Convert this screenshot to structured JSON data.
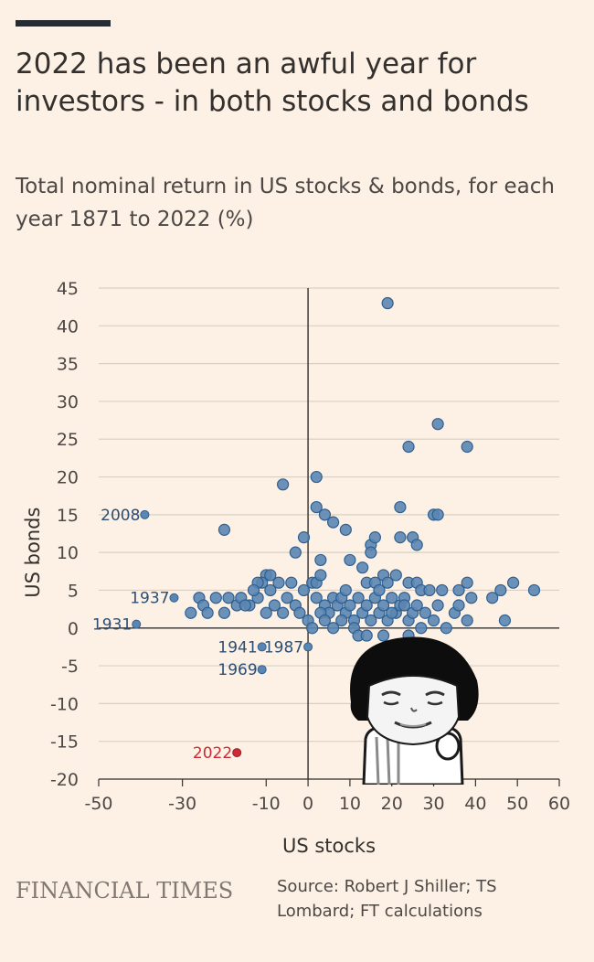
{
  "header": {
    "title": "2022 has been an awful year for investors - in both stocks and bonds",
    "subtitle": "Total nominal return in US stocks & bonds, for each year 1871 to 2022 (%)"
  },
  "footer": {
    "brand": "FINANCIAL TIMES",
    "source": "Source: Robert J Shiller; TS Lombard; FT calculations"
  },
  "colors": {
    "background": "#fdf1e5",
    "point": "#5b86b3",
    "point_stroke": "#2f5f8f",
    "highlight": "#cc2b36",
    "grid": "#d9cfc4",
    "axis": "#33302e"
  },
  "sticker": {
    "icon": "panda-meme-face-icon"
  },
  "chart_data": {
    "type": "scatter",
    "title": "",
    "xlabel": "US stocks",
    "ylabel": "US bonds",
    "xlim": [
      -50,
      60
    ],
    "ylim": [
      -20,
      45
    ],
    "xticks": [
      -50,
      -30,
      -10,
      0,
      10,
      20,
      30,
      40,
      50,
      60
    ],
    "yticks": [
      -20,
      -15,
      -10,
      -5,
      0,
      5,
      10,
      15,
      20,
      25,
      30,
      35,
      40,
      45
    ],
    "grid": "horizontal",
    "labeled_points": [
      {
        "label": "2008",
        "x": -39,
        "y": 15,
        "highlight": false
      },
      {
        "label": "1937",
        "x": -32,
        "y": 4,
        "highlight": false
      },
      {
        "label": "1931",
        "x": -41,
        "y": 0.5,
        "highlight": false
      },
      {
        "label": "1941",
        "x": -11,
        "y": -2.5,
        "highlight": false
      },
      {
        "label": "1987",
        "x": 0,
        "y": -2.5,
        "highlight": false
      },
      {
        "label": "1969",
        "x": -11,
        "y": -5.5,
        "highlight": false
      },
      {
        "label": "2022",
        "x": -17,
        "y": -16.5,
        "highlight": true
      }
    ],
    "points": [
      [
        19,
        43
      ],
      [
        31,
        27
      ],
      [
        24,
        24
      ],
      [
        38,
        24
      ],
      [
        2,
        20
      ],
      [
        -6,
        19
      ],
      [
        -20,
        13
      ],
      [
        2,
        16
      ],
      [
        22,
        16
      ],
      [
        4,
        15
      ],
      [
        30,
        15
      ],
      [
        31,
        15
      ],
      [
        6,
        14
      ],
      [
        25,
        12
      ],
      [
        9,
        13
      ],
      [
        15,
        11
      ],
      [
        16,
        12
      ],
      [
        22,
        12
      ],
      [
        26,
        11
      ],
      [
        -1,
        12
      ],
      [
        15,
        10
      ],
      [
        -3,
        10
      ],
      [
        3,
        9
      ],
      [
        10,
        9
      ],
      [
        13,
        8
      ],
      [
        18,
        7
      ],
      [
        21,
        7
      ],
      [
        -10,
        7
      ],
      [
        -9,
        7
      ],
      [
        -11,
        6
      ],
      [
        -12,
        6
      ],
      [
        -7,
        6
      ],
      [
        -4,
        6
      ],
      [
        1,
        6
      ],
      [
        2,
        6
      ],
      [
        3,
        7
      ],
      [
        14,
        6
      ],
      [
        16,
        6
      ],
      [
        19,
        6
      ],
      [
        24,
        6
      ],
      [
        26,
        6
      ],
      [
        27,
        5
      ],
      [
        32,
        5
      ],
      [
        36,
        5
      ],
      [
        38,
        6
      ],
      [
        49,
        6
      ],
      [
        54,
        5
      ],
      [
        46,
        5
      ],
      [
        -28,
        2
      ],
      [
        -26,
        4
      ],
      [
        -25,
        3
      ],
      [
        -22,
        4
      ],
      [
        -19,
        4
      ],
      [
        -17,
        3
      ],
      [
        -16,
        4
      ],
      [
        -14,
        3
      ],
      [
        -12,
        4
      ],
      [
        -10,
        2
      ],
      [
        -9,
        5
      ],
      [
        -8,
        3
      ],
      [
        -6,
        2
      ],
      [
        -3,
        3
      ],
      [
        -2,
        2
      ],
      [
        0,
        1
      ],
      [
        2,
        4
      ],
      [
        4,
        3
      ],
      [
        5,
        2
      ],
      [
        6,
        4
      ],
      [
        7,
        3
      ],
      [
        8,
        4
      ],
      [
        9,
        2
      ],
      [
        10,
        3
      ],
      [
        11,
        1
      ],
      [
        12,
        4
      ],
      [
        13,
        2
      ],
      [
        14,
        3
      ],
      [
        15,
        1
      ],
      [
        16,
        4
      ],
      [
        17,
        2
      ],
      [
        18,
        3
      ],
      [
        19,
        1
      ],
      [
        20,
        4
      ],
      [
        21,
        2
      ],
      [
        22,
        3
      ],
      [
        23,
        4
      ],
      [
        24,
        1
      ],
      [
        25,
        2
      ],
      [
        26,
        3
      ],
      [
        27,
        0
      ],
      [
        28,
        2
      ],
      [
        30,
        1
      ],
      [
        31,
        3
      ],
      [
        33,
        0
      ],
      [
        35,
        2
      ],
      [
        36,
        3
      ],
      [
        38,
        1
      ],
      [
        39,
        4
      ],
      [
        44,
        4
      ],
      [
        47,
        1
      ],
      [
        -15,
        3
      ],
      [
        -13,
        5
      ],
      [
        -5,
        4
      ],
      [
        -1,
        5
      ],
      [
        1,
        0
      ],
      [
        3,
        2
      ],
      [
        6,
        0
      ],
      [
        8,
        1
      ],
      [
        11,
        0
      ],
      [
        12,
        -1
      ],
      [
        14,
        -1
      ],
      [
        18,
        -1
      ],
      [
        24,
        -1
      ],
      [
        -24,
        2
      ],
      [
        -20,
        2
      ],
      [
        4,
        1
      ],
      [
        9,
        5
      ],
      [
        17,
        5
      ],
      [
        20,
        2
      ],
      [
        23,
        3
      ],
      [
        29,
        5
      ]
    ]
  }
}
